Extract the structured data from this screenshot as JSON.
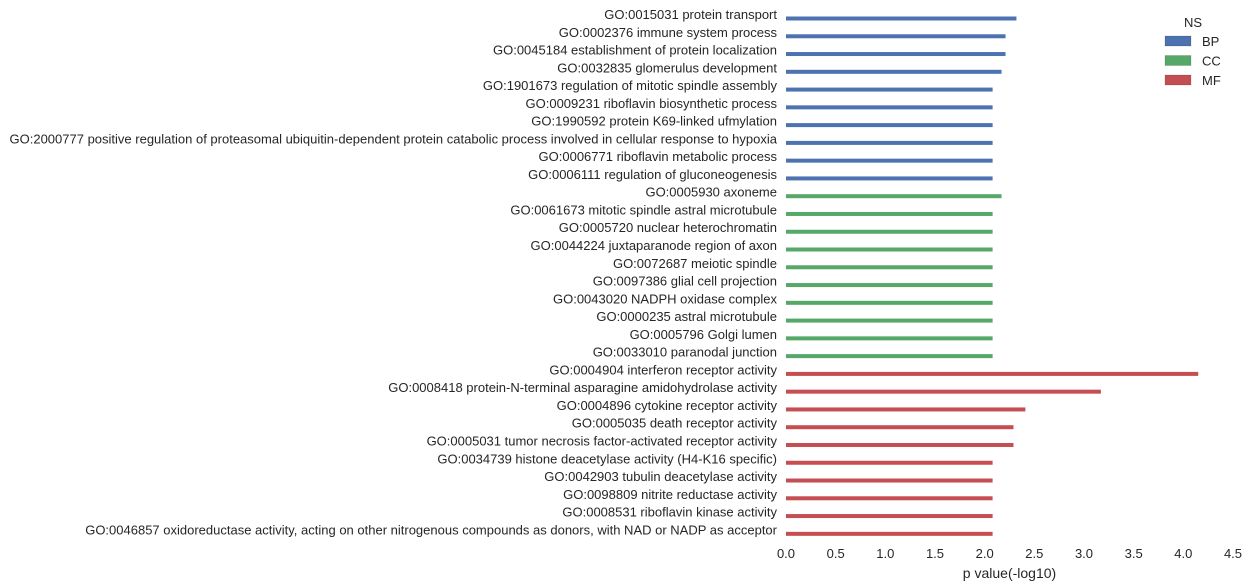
{
  "chart_data": {
    "type": "bar",
    "orientation": "horizontal",
    "title": "",
    "xlabel": "p value(-log10)",
    "ylabel": "",
    "xlim": [
      0,
      4.5
    ],
    "xticks": [
      "0.0",
      "0.5",
      "1.0",
      "1.5",
      "2.0",
      "2.5",
      "3.0",
      "3.5",
      "4.0",
      "4.5"
    ],
    "grid": false,
    "legend": {
      "title": "NS",
      "position": "top-right",
      "entries": [
        {
          "name": "BP",
          "color": "#4c72b0"
        },
        {
          "name": "CC",
          "color": "#55a868"
        },
        {
          "name": "MF",
          "color": "#c44e52"
        }
      ]
    },
    "bars": [
      {
        "label": "GO:0015031 protein transport",
        "value": 2.32,
        "ns": "BP"
      },
      {
        "label": "GO:0002376 immune system process",
        "value": 2.21,
        "ns": "BP"
      },
      {
        "label": "GO:0045184 establishment of protein localization",
        "value": 2.21,
        "ns": "BP"
      },
      {
        "label": "GO:0032835 glomerulus development",
        "value": 2.17,
        "ns": "BP"
      },
      {
        "label": "GO:1901673 regulation of mitotic spindle assembly",
        "value": 2.08,
        "ns": "BP"
      },
      {
        "label": "GO:0009231 riboflavin biosynthetic process",
        "value": 2.08,
        "ns": "BP"
      },
      {
        "label": "GO:1990592 protein K69-linked ufmylation",
        "value": 2.08,
        "ns": "BP"
      },
      {
        "label": "GO:2000777 positive regulation of proteasomal ubiquitin-dependent protein catabolic process involved in cellular response to hypoxia",
        "value": 2.08,
        "ns": "BP"
      },
      {
        "label": "GO:0006771 riboflavin metabolic process",
        "value": 2.08,
        "ns": "BP"
      },
      {
        "label": "GO:0006111 regulation of gluconeogenesis",
        "value": 2.08,
        "ns": "BP"
      },
      {
        "label": "GO:0005930 axoneme",
        "value": 2.17,
        "ns": "CC"
      },
      {
        "label": "GO:0061673 mitotic spindle astral microtubule",
        "value": 2.08,
        "ns": "CC"
      },
      {
        "label": "GO:0005720 nuclear heterochromatin",
        "value": 2.08,
        "ns": "CC"
      },
      {
        "label": "GO:0044224 juxtaparanode region of axon",
        "value": 2.08,
        "ns": "CC"
      },
      {
        "label": "GO:0072687 meiotic spindle",
        "value": 2.08,
        "ns": "CC"
      },
      {
        "label": "GO:0097386 glial cell projection",
        "value": 2.08,
        "ns": "CC"
      },
      {
        "label": "GO:0043020 NADPH oxidase complex",
        "value": 2.08,
        "ns": "CC"
      },
      {
        "label": "GO:0000235 astral microtubule",
        "value": 2.08,
        "ns": "CC"
      },
      {
        "label": "GO:0005796 Golgi lumen",
        "value": 2.08,
        "ns": "CC"
      },
      {
        "label": "GO:0033010 paranodal junction",
        "value": 2.08,
        "ns": "CC"
      },
      {
        "label": "GO:0004904 interferon receptor activity",
        "value": 4.15,
        "ns": "MF"
      },
      {
        "label": "GO:0008418 protein-N-terminal asparagine amidohydrolase activity",
        "value": 3.17,
        "ns": "MF"
      },
      {
        "label": "GO:0004896 cytokine receptor activity",
        "value": 2.41,
        "ns": "MF"
      },
      {
        "label": "GO:0005035 death receptor activity",
        "value": 2.29,
        "ns": "MF"
      },
      {
        "label": "GO:0005031 tumor necrosis factor-activated receptor activity",
        "value": 2.29,
        "ns": "MF"
      },
      {
        "label": "GO:0034739 histone deacetylase activity (H4-K16 specific)",
        "value": 2.08,
        "ns": "MF"
      },
      {
        "label": "GO:0042903 tubulin deacetylase activity",
        "value": 2.08,
        "ns": "MF"
      },
      {
        "label": "GO:0098809 nitrite reductase activity",
        "value": 2.08,
        "ns": "MF"
      },
      {
        "label": "GO:0008531 riboflavin kinase activity",
        "value": 2.08,
        "ns": "MF"
      },
      {
        "label": "GO:0046857 oxidoreductase activity, acting on other nitrogenous compounds as donors, with NAD or NADP as acceptor",
        "value": 2.08,
        "ns": "MF"
      }
    ]
  }
}
